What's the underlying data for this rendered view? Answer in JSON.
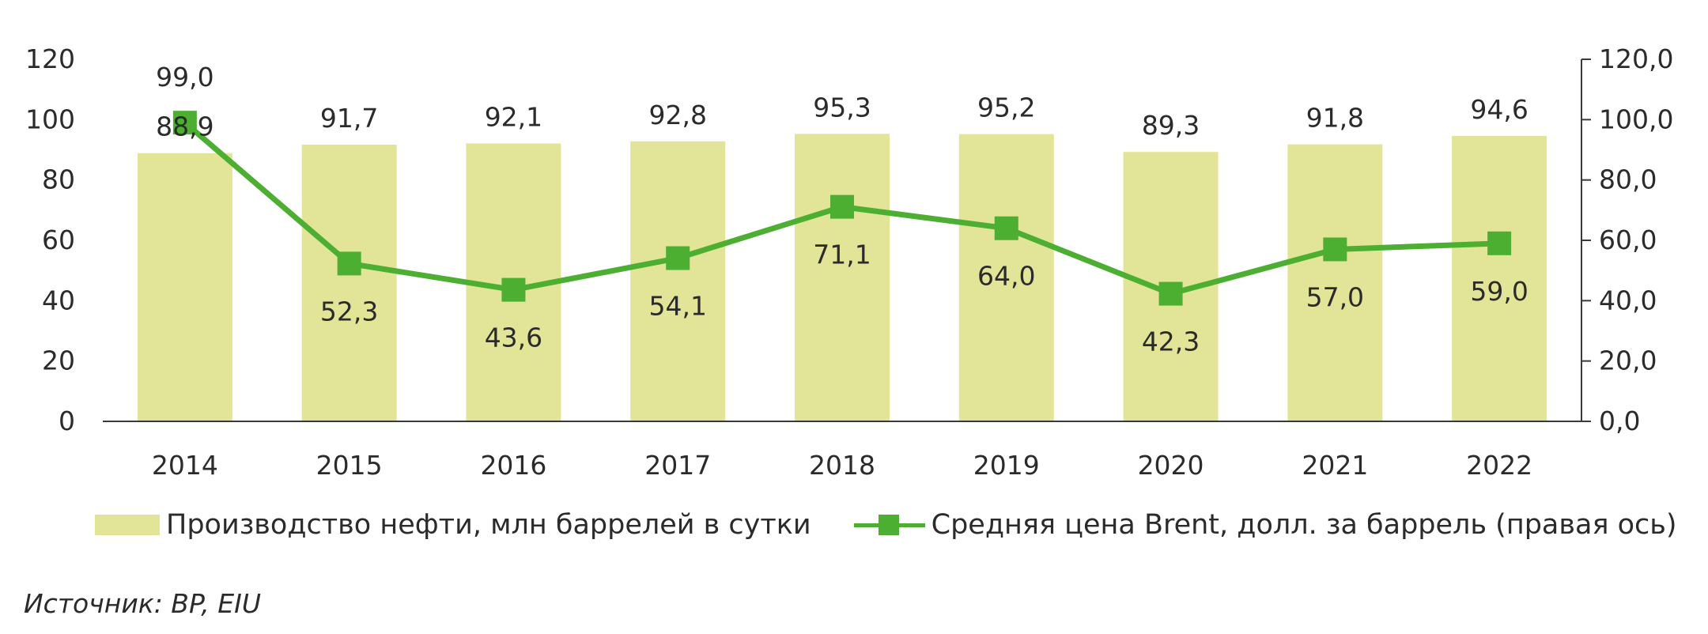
{
  "chart_data": {
    "type": "bar",
    "categories": [
      "2014",
      "2015",
      "2016",
      "2017",
      "2018",
      "2019",
      "2020",
      "2021",
      "2022"
    ],
    "series": [
      {
        "name": "Производство нефти, млн баррелей в сутки",
        "type": "bar",
        "axis": "left",
        "values": [
          88.9,
          91.7,
          92.1,
          92.8,
          95.3,
          95.2,
          89.3,
          91.8,
          94.6
        ],
        "labels": [
          "88,9",
          "91,7",
          "92,1",
          "92,8",
          "95,3",
          "95,2",
          "89,3",
          "91,8",
          "94,6"
        ],
        "color": "#e2e597"
      },
      {
        "name": "Средняя цена Brent, долл. за баррель (правая ось)",
        "type": "line",
        "axis": "right",
        "values": [
          99.0,
          52.3,
          43.6,
          54.1,
          71.1,
          64.0,
          42.3,
          57.0,
          59.0
        ],
        "labels": [
          "99,0",
          "52,3",
          "43,6",
          "54,1",
          "71,1",
          "64,0",
          "42,3",
          "57,0",
          "59,0"
        ],
        "color": "#4caf32"
      }
    ],
    "y_left": {
      "ylim": [
        0,
        120
      ],
      "ticks": [
        "0",
        "20",
        "40",
        "60",
        "80",
        "100",
        "120"
      ]
    },
    "y_right": {
      "ylim": [
        0,
        120
      ],
      "ticks": [
        "0,0",
        "20,0",
        "40,0",
        "60,0",
        "80,0",
        "100,0",
        "120,0"
      ]
    },
    "grid": false,
    "legend_position": "bottom",
    "source": "Источник: BP, EIU"
  }
}
